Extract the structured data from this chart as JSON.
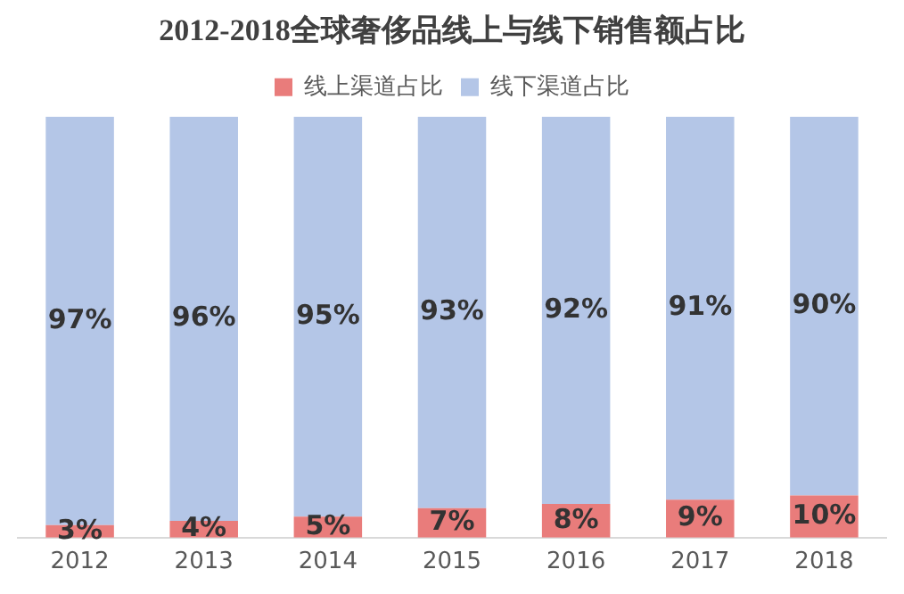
{
  "chart_data": {
    "type": "bar",
    "title": "2012-2018全球奢侈品线上与线下销售额占比",
    "categories": [
      "2012",
      "2013",
      "2014",
      "2015",
      "2016",
      "2017",
      "2018"
    ],
    "series": [
      {
        "name": "线上渠道占比",
        "color": "#e97c7b",
        "values": [
          3,
          4,
          5,
          7,
          8,
          9,
          10
        ],
        "value_labels": [
          "3%",
          "4%",
          "5%",
          "7%",
          "8%",
          "9%",
          "10%"
        ]
      },
      {
        "name": "线下渠道占比",
        "color": "#b4c6e7",
        "values": [
          97,
          96,
          95,
          93,
          92,
          91,
          90
        ],
        "value_labels": [
          "97%",
          "96%",
          "95%",
          "93%",
          "92%",
          "91%",
          "90%"
        ]
      }
    ],
    "stacked": true,
    "tick_labels": "x",
    "grid": false,
    "legend": "top"
  }
}
